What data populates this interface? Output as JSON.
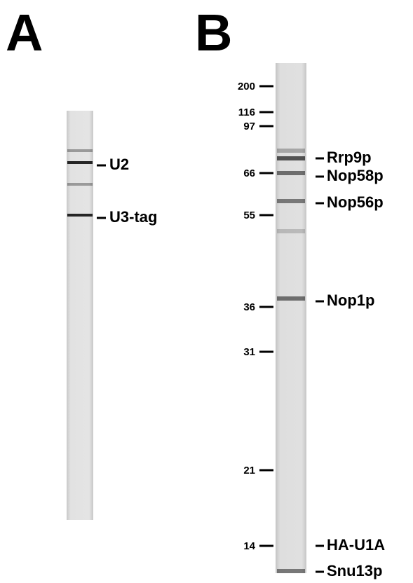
{
  "panels": [
    {
      "label": "A",
      "bands": [
        "U2",
        "U3-tag"
      ]
    },
    {
      "label": "B",
      "markers": [
        200,
        116,
        97,
        66,
        55,
        36,
        31,
        21,
        14
      ],
      "bands": [
        "Rrp9p",
        "Nop58p",
        "Nop56p",
        "Nop1p",
        "HA-U1A",
        "Snu13p"
      ]
    }
  ]
}
